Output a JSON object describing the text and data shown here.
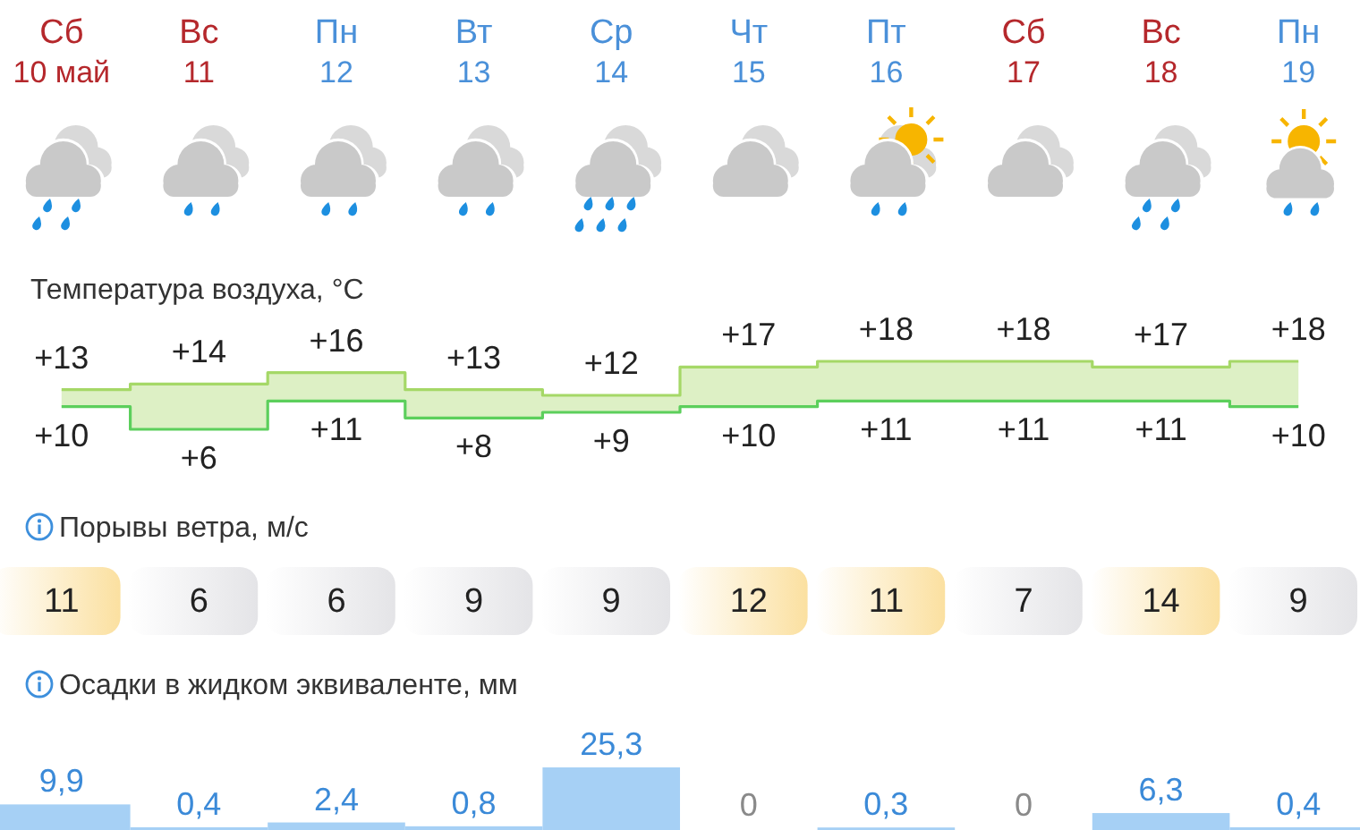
{
  "chart_data": [
    {
      "type": "step",
      "title": "Температура воздуха, °C",
      "categories": [
        "Сб\n10 май",
        "Вс\n11",
        "Пн\n12",
        "Вт\n13",
        "Ср\n14",
        "Чт\n15",
        "Пт\n16",
        "Сб\n17",
        "Вс\n18",
        "Пн\n19"
      ],
      "series": [
        {
          "color": "#a5d867",
          "values": [
            13,
            14,
            16,
            13,
            12,
            17,
            18,
            18,
            17,
            18
          ],
          "upper": [
            13,
            14,
            16,
            13,
            12,
            17,
            18,
            18,
            17,
            18
          ],
          "lower": [
            10,
            6,
            11,
            8,
            9,
            10,
            11,
            11,
            11,
            10
          ],
          "value_labels": [
            "+13",
            "+14",
            "+16",
            "+13",
            "+12",
            "+17",
            "+18",
            "+18",
            "+17",
            "+18"
          ]
        },
        {
          "color": "#5ccf5c",
          "values": [
            10,
            6,
            11,
            8,
            9,
            10,
            11,
            11,
            11,
            10
          ],
          "value_labels": [
            "+10",
            "+6",
            "+11",
            "+8",
            "+9",
            "+10",
            "+11",
            "+11",
            "+11",
            "+10"
          ]
        }
      ]
    },
    {
      "type": "other",
      "title": "Порывы ветра, м/с",
      "values": [
        11,
        6,
        6,
        9,
        9,
        12,
        11,
        7,
        14,
        9
      ],
      "colors": [
        "#fbe0a0",
        "#e4e4e7",
        "#e4e4e7",
        "#e4e4e7",
        "#e4e4e7",
        "#fbe0a0",
        "#fbe0a0",
        "#e4e4e7",
        "#fbe0a0",
        "#e4e4e7"
      ],
      "data_labels": true
    },
    {
      "type": "bar",
      "title": "Осадки в жидком эквиваленте, мм",
      "categories": [
        null,
        null,
        null,
        null,
        null,
        null,
        null,
        null,
        null,
        null
      ],
      "values": [
        9.9,
        0.4,
        2.4,
        0.8,
        25.3,
        0,
        0.3,
        0,
        6.3,
        0.4
      ],
      "color": "#a6d0f5",
      "value_labels": [
        "9,9",
        "0,4",
        "2,4",
        "0,8",
        "25,3",
        "0",
        "0,3",
        "0",
        "6,3",
        "0,4"
      ]
    }
  ]
}
